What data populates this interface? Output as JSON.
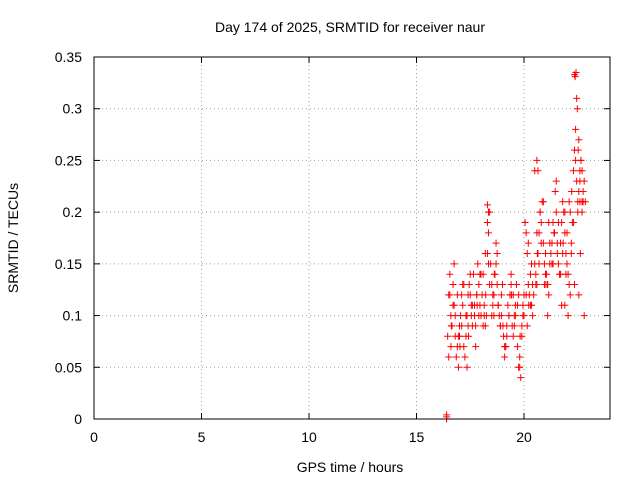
{
  "chart_data": {
    "type": "scatter",
    "title": "Day 174 of 2025, SRMTID for receiver naur",
    "xlabel": "GPS time / hours",
    "ylabel": "SRMTID / TECUs",
    "xlim": [
      0,
      24
    ],
    "ylim": [
      0,
      0.35
    ],
    "xticks": [
      0,
      5,
      10,
      15,
      20
    ],
    "xtick_labels": [
      "0",
      "5",
      "10",
      "15",
      "20"
    ],
    "yticks": [
      0,
      0.05,
      0.1,
      0.15,
      0.2,
      0.25,
      0.3,
      0.35
    ],
    "ytick_labels": [
      "0",
      "0.05",
      "0.1",
      "0.15",
      "0.2",
      "0.25",
      "0.3",
      "0.35"
    ],
    "grid": true,
    "marker": "+",
    "color": "#ff0000",
    "series": [
      {
        "name": "SRMTID",
        "x": [
          16.4,
          16.4,
          16.4,
          16.45,
          16.5,
          16.55,
          16.6,
          16.65,
          16.7,
          16.75,
          16.8,
          16.85,
          16.9,
          16.95,
          17.0,
          17.05,
          17.1,
          17.15,
          17.2,
          17.25,
          17.3,
          17.35,
          17.4,
          17.45,
          17.5,
          17.55,
          17.6,
          17.65,
          17.7,
          17.75,
          17.8,
          17.85,
          17.9,
          17.95,
          18.0,
          18.05,
          18.1,
          18.15,
          18.2,
          18.25,
          18.3,
          18.35,
          18.4,
          18.45,
          18.5,
          18.55,
          18.6,
          18.65,
          18.7,
          18.75,
          18.8,
          18.85,
          18.9,
          18.95,
          19.0,
          19.05,
          19.1,
          19.15,
          19.2,
          19.25,
          19.3,
          19.35,
          19.4,
          19.45,
          19.5,
          19.55,
          19.6,
          19.65,
          19.7,
          19.75,
          19.8,
          19.85,
          19.9,
          19.95,
          20.0,
          20.05,
          20.1,
          20.15,
          20.2,
          20.25,
          20.3,
          20.35,
          20.4,
          20.45,
          20.5,
          20.55,
          20.6,
          20.65,
          20.7,
          20.75,
          20.8,
          20.85,
          20.9,
          20.95,
          21.0,
          21.05,
          21.1,
          21.15,
          21.2,
          21.25,
          21.3,
          21.35,
          21.4,
          21.45,
          21.5,
          21.55,
          21.6,
          21.65,
          21.7,
          21.75,
          21.8,
          21.85,
          21.9,
          21.95,
          22.0,
          22.05,
          22.1,
          22.15,
          22.2,
          22.25,
          22.3,
          22.35,
          22.4,
          22.45,
          22.5,
          22.55,
          22.6,
          22.65,
          22.7,
          22.75,
          22.8,
          16.5,
          16.6,
          16.7,
          16.8,
          16.9,
          17.0,
          17.1,
          17.2,
          17.3,
          17.4,
          17.5,
          17.6,
          17.7,
          17.8,
          17.9,
          18.0,
          18.1,
          18.2,
          18.3,
          18.4,
          18.5,
          18.6,
          18.7,
          18.8,
          18.9,
          19.0,
          19.1,
          19.2,
          19.3,
          19.4,
          19.5,
          19.6,
          19.7,
          19.8,
          19.9,
          20.0,
          20.1,
          20.2,
          20.3,
          20.4,
          20.5,
          20.6,
          20.7,
          20.8,
          20.9,
          21.0,
          21.1,
          21.2,
          21.3,
          21.4,
          21.5,
          21.6,
          21.7,
          21.8,
          21.9,
          22.0,
          22.1,
          22.2,
          22.3,
          22.4,
          22.5,
          22.6,
          22.7,
          16.55,
          16.75,
          16.95,
          17.15,
          17.35,
          17.55,
          17.75,
          17.95,
          18.15,
          18.35,
          18.55,
          18.75,
          18.95,
          19.15,
          19.35,
          19.55,
          19.75,
          19.95,
          20.15,
          20.35,
          20.55,
          20.75,
          20.95,
          21.15,
          21.35,
          21.55,
          21.75,
          21.95,
          22.15,
          22.35,
          22.55,
          22.75,
          22.35,
          22.38,
          22.42,
          22.45,
          22.48,
          22.52,
          22.55,
          22.6,
          22.65,
          22.7,
          18.3,
          18.35,
          20.6,
          20.65,
          21.1,
          21.9,
          22.05,
          22.8,
          22.85,
          16.62,
          17.02,
          17.42,
          17.82,
          18.22,
          18.62,
          19.02,
          19.42,
          19.82,
          20.22,
          20.62,
          21.02,
          21.42,
          21.82,
          22.22,
          22.62
        ],
        "y": [
          0.0,
          0.002,
          0.004,
          0.08,
          0.12,
          0.14,
          0.1,
          0.09,
          0.13,
          0.11,
          0.08,
          0.06,
          0.07,
          0.05,
          0.09,
          0.1,
          0.12,
          0.11,
          0.07,
          0.06,
          0.08,
          0.1,
          0.09,
          0.13,
          0.12,
          0.1,
          0.11,
          0.14,
          0.1,
          0.09,
          0.12,
          0.15,
          0.13,
          0.11,
          0.1,
          0.12,
          0.14,
          0.11,
          0.09,
          0.1,
          0.16,
          0.18,
          0.2,
          0.15,
          0.13,
          0.12,
          0.1,
          0.14,
          0.17,
          0.13,
          0.11,
          0.1,
          0.09,
          0.12,
          0.13,
          0.08,
          0.06,
          0.07,
          0.09,
          0.11,
          0.1,
          0.12,
          0.14,
          0.09,
          0.08,
          0.1,
          0.11,
          0.13,
          0.07,
          0.05,
          0.06,
          0.04,
          0.09,
          0.11,
          0.12,
          0.19,
          0.18,
          0.16,
          0.13,
          0.12,
          0.14,
          0.11,
          0.1,
          0.12,
          0.15,
          0.14,
          0.13,
          0.16,
          0.18,
          0.2,
          0.19,
          0.21,
          0.17,
          0.15,
          0.16,
          0.14,
          0.13,
          0.12,
          0.15,
          0.16,
          0.17,
          0.19,
          0.18,
          0.22,
          0.2,
          0.16,
          0.15,
          0.14,
          0.17,
          0.19,
          0.21,
          0.2,
          0.18,
          0.16,
          0.15,
          0.14,
          0.13,
          0.12,
          0.17,
          0.19,
          0.24,
          0.26,
          0.28,
          0.23,
          0.21,
          0.22,
          0.24,
          0.25,
          0.2,
          0.22,
          0.23,
          0.06,
          0.07,
          0.11,
          0.1,
          0.12,
          0.08,
          0.09,
          0.13,
          0.1,
          0.12,
          0.14,
          0.09,
          0.11,
          0.12,
          0.1,
          0.14,
          0.09,
          0.16,
          0.19,
          0.13,
          0.1,
          0.12,
          0.15,
          0.11,
          0.09,
          0.13,
          0.07,
          0.08,
          0.1,
          0.13,
          0.12,
          0.1,
          0.11,
          0.05,
          0.08,
          0.1,
          0.12,
          0.17,
          0.11,
          0.13,
          0.24,
          0.18,
          0.15,
          0.17,
          0.21,
          0.14,
          0.13,
          0.17,
          0.15,
          0.18,
          0.23,
          0.19,
          0.14,
          0.16,
          0.2,
          0.18,
          0.21,
          0.16,
          0.19,
          0.25,
          0.2,
          0.21,
          0.24,
          0.12,
          0.15,
          0.08,
          0.13,
          0.05,
          0.11,
          0.07,
          0.14,
          0.1,
          0.15,
          0.11,
          0.16,
          0.1,
          0.07,
          0.12,
          0.09,
          0.12,
          0.1,
          0.09,
          0.15,
          0.13,
          0.2,
          0.13,
          0.19,
          0.15,
          0.17,
          0.11,
          0.14,
          0.2,
          0.13,
          0.12,
          0.21,
          0.333,
          0.331,
          0.335,
          0.31,
          0.3,
          0.26,
          0.27,
          0.23,
          0.25,
          0.21,
          0.207,
          0.2,
          0.25,
          0.24,
          0.1,
          0.11,
          0.1,
          0.1,
          0.21,
          0.09,
          0.07,
          0.08,
          0.11,
          0.12,
          0.14,
          0.09,
          0.12,
          0.08,
          0.11,
          0.16,
          0.13,
          0.18,
          0.17,
          0.22,
          0.16
        ]
      }
    ]
  }
}
